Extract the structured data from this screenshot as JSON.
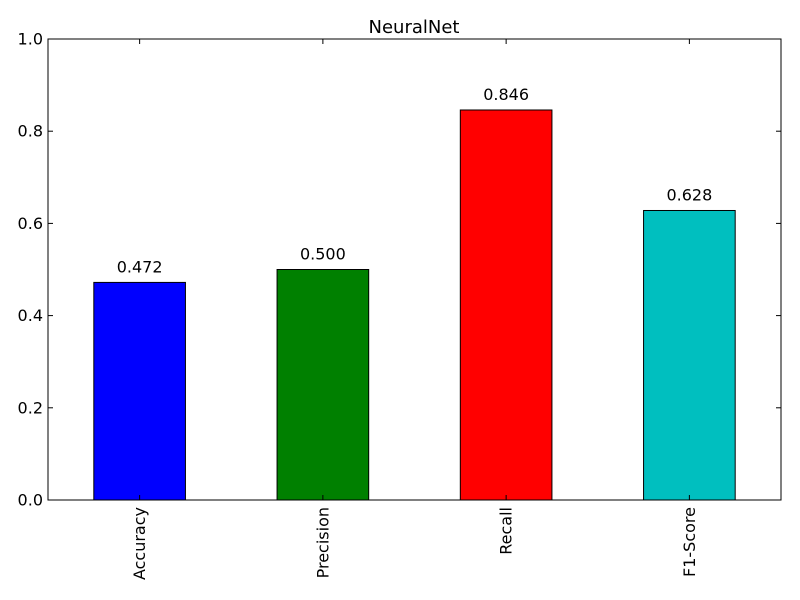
{
  "chart_data": {
    "type": "bar",
    "title": "NeuralNet",
    "categories": [
      "Accuracy",
      "Precision",
      "Recall",
      "F1-Score"
    ],
    "values": [
      0.472,
      0.5,
      0.846,
      0.628
    ],
    "value_labels": [
      "0.472",
      "0.500",
      "0.846",
      "0.628"
    ],
    "bar_colors": [
      "#0000ff",
      "#008000",
      "#ff0000",
      "#00bfbf"
    ],
    "ylim": [
      0,
      1.0
    ],
    "yticks": [
      0.0,
      0.2,
      0.4,
      0.6,
      0.8,
      1.0
    ],
    "ytick_labels": [
      "0.0",
      "0.2",
      "0.4",
      "0.6",
      "0.8",
      "1.0"
    ],
    "xlabel": "",
    "ylabel": "",
    "grid": false,
    "legend": "none"
  }
}
